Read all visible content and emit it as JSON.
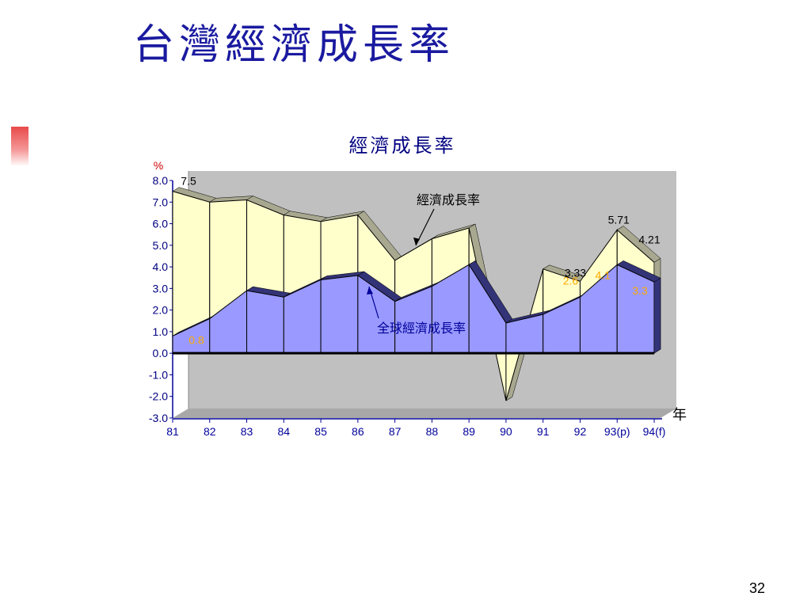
{
  "slide": {
    "title": "台灣經濟成長率",
    "page_number": "32"
  },
  "chart_data": {
    "type": "area",
    "title": "經濟成長率",
    "ylabel": "%",
    "xlabel": "年",
    "ylim": [
      -3.0,
      8.0
    ],
    "y_ticks": [
      "8.0",
      "7.0",
      "6.0",
      "5.0",
      "4.0",
      "3.0",
      "2.0",
      "1.0",
      "0.0",
      "-1.0",
      "-2.0",
      "-3.0"
    ],
    "categories": [
      "81",
      "82",
      "83",
      "84",
      "85",
      "86",
      "87",
      "88",
      "89",
      "90",
      "91",
      "92",
      "93(p)",
      "94(f)"
    ],
    "series": [
      {
        "name": "經濟成長率",
        "values": [
          7.5,
          7.0,
          7.1,
          6.4,
          6.1,
          6.4,
          4.3,
          5.3,
          5.8,
          -2.2,
          3.9,
          3.33,
          5.71,
          4.21
        ],
        "color": "#ffffcc"
      },
      {
        "name": "全球經濟成長率",
        "values": [
          0.8,
          1.6,
          2.9,
          2.6,
          3.4,
          3.6,
          2.4,
          3.1,
          4.1,
          1.4,
          1.8,
          2.6,
          4.1,
          3.3
        ]
      }
    ],
    "data_labels": {
      "series_0": {
        "0": "7.5",
        "11": "3.33",
        "12": "5.71",
        "13": "4.21"
      },
      "series_1": {
        "0": "0.8",
        "11": "2.6",
        "12": "4.1",
        "13": "3.3"
      }
    },
    "colors": {
      "plot_wall": "#c0c0c0",
      "floor": "#a8a8a8",
      "series_0": "#ffffcc",
      "series_0_top": "#a8a890",
      "series_1": "#9999ff",
      "series_1_top": "#333377",
      "label_orange": "#ffaa00",
      "axis_blue": "#000099",
      "y_tick": "#000080",
      "y_unit": "#cc0000",
      "title_blue": "#000080"
    }
  }
}
